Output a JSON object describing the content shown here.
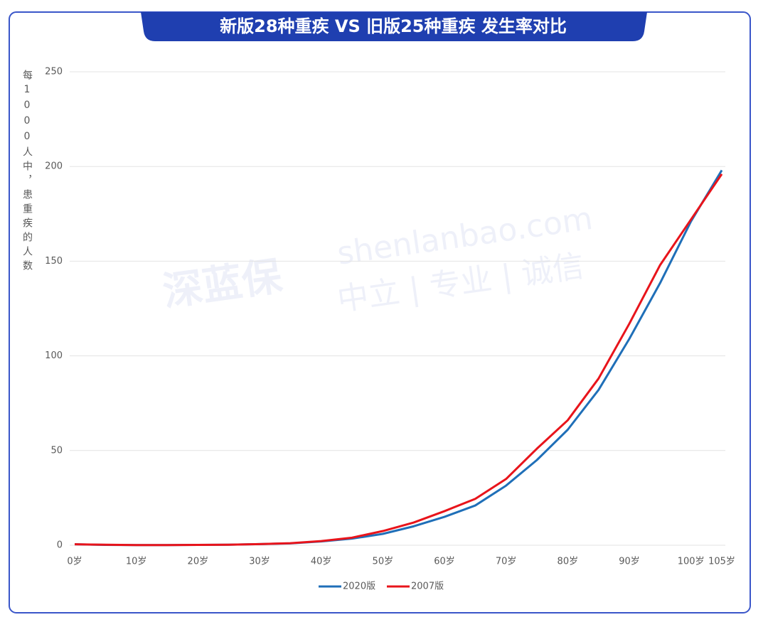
{
  "chart_data": {
    "type": "line",
    "title": "新版28种重疾 VS 旧版25种重疾 发生率对比",
    "y_label": "每1000人中，患重疾的人数",
    "watermark": [
      "shenlanbao.com",
      "中立 | 专业 | 诚信",
      "深蓝保"
    ],
    "x": [
      0,
      5,
      10,
      15,
      20,
      25,
      30,
      35,
      40,
      45,
      50,
      55,
      60,
      65,
      70,
      75,
      80,
      85,
      90,
      95,
      100,
      105
    ],
    "series": [
      {
        "name": "2020版",
        "color": "#1f6fb8",
        "values": [
          0.5,
          0.2,
          0.1,
          0.1,
          0.2,
          0.3,
          0.6,
          1.0,
          2.0,
          3.5,
          6,
          10,
          15,
          21,
          31.5,
          45,
          61,
          82,
          109,
          138.5,
          171,
          198
        ]
      },
      {
        "name": "2007版",
        "color": "#e8141b",
        "values": [
          0.5,
          0.3,
          0.1,
          0.1,
          0.2,
          0.3,
          0.6,
          1.1,
          2.2,
          4,
          7.5,
          12,
          18,
          24.5,
          35,
          51,
          66,
          88,
          117,
          148,
          172,
          196
        ]
      }
    ],
    "xlim": [
      0,
      105
    ],
    "xticks": [
      {
        "value": 0,
        "label": "0岁"
      },
      {
        "value": 10,
        "label": "10岁"
      },
      {
        "value": 20,
        "label": "20岁"
      },
      {
        "value": 30,
        "label": "30岁"
      },
      {
        "value": 40,
        "label": "40岁"
      },
      {
        "value": 50,
        "label": "50岁"
      },
      {
        "value": 60,
        "label": "60岁"
      },
      {
        "value": 70,
        "label": "70岁"
      },
      {
        "value": 80,
        "label": "80岁"
      },
      {
        "value": 90,
        "label": "90岁"
      },
      {
        "value": 100,
        "label": "100岁"
      },
      {
        "value": 105,
        "label": "105岁"
      }
    ],
    "ylim": [
      0,
      250
    ],
    "yticks": [
      0,
      50,
      100,
      150,
      200,
      250
    ],
    "grid": true
  }
}
